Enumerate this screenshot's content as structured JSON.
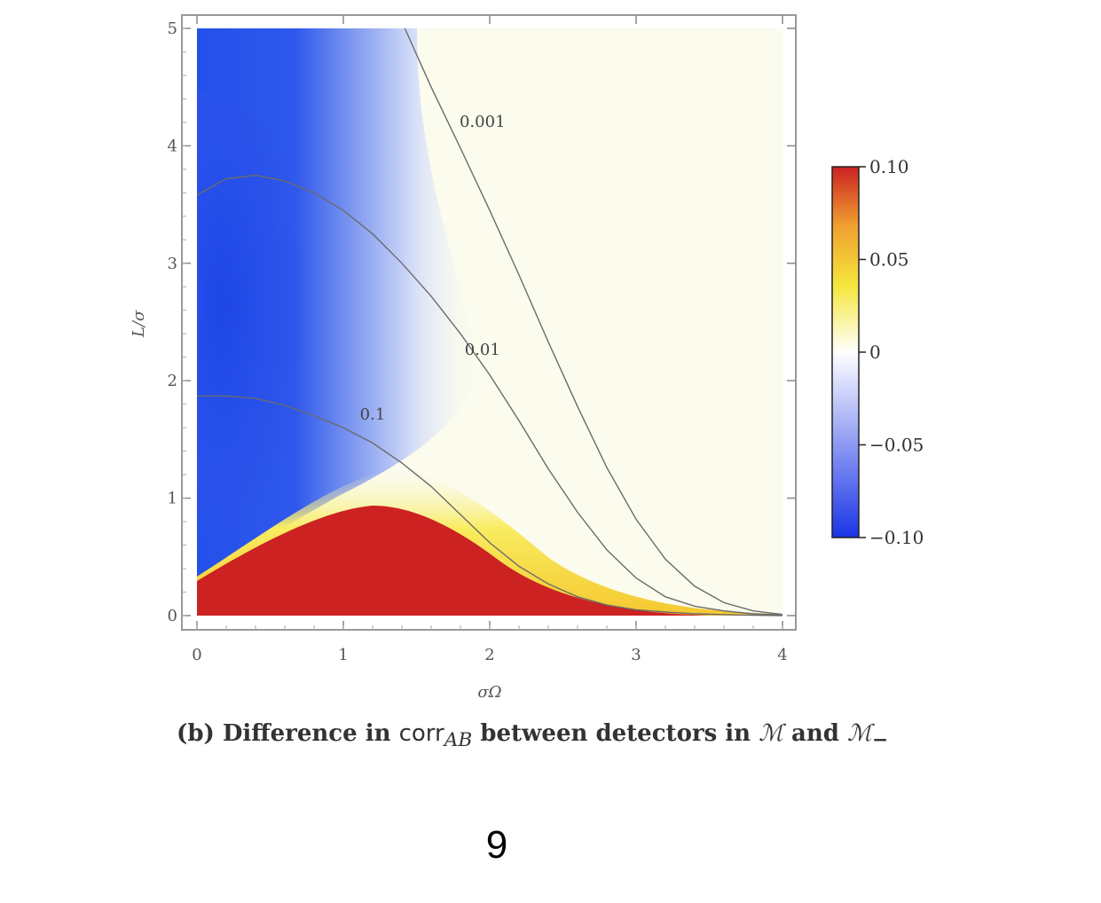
{
  "chart_data": {
    "type": "heatmap",
    "xlabel": "σΩ",
    "ylabel": "L/σ",
    "xlim": [
      0,
      4
    ],
    "ylim": [
      0,
      5
    ],
    "x_ticks": [
      "0",
      "1",
      "2",
      "3",
      "4"
    ],
    "y_ticks": [
      "0",
      "1",
      "2",
      "3",
      "4",
      "5"
    ],
    "colorbar": {
      "min": -0.1,
      "max": 0.1,
      "ticks": [
        "0.10",
        "0.05",
        "0",
        "−0.05",
        "−0.10"
      ],
      "colors": [
        "#1a34e6",
        "#ffffff",
        "#f5e63c",
        "#f0a030",
        "#cc2222"
      ]
    },
    "contours": [
      {
        "label": "0.1",
        "points": [
          [
            0,
            1.87
          ],
          [
            0.2,
            1.87
          ],
          [
            0.4,
            1.85
          ],
          [
            0.6,
            1.79
          ],
          [
            0.8,
            1.7
          ],
          [
            1.0,
            1.6
          ],
          [
            1.2,
            1.47
          ],
          [
            1.4,
            1.3
          ],
          [
            1.6,
            1.1
          ],
          [
            1.8,
            0.86
          ],
          [
            2.0,
            0.62
          ],
          [
            2.2,
            0.42
          ],
          [
            2.4,
            0.27
          ],
          [
            2.6,
            0.16
          ],
          [
            2.8,
            0.09
          ],
          [
            3.0,
            0.05
          ],
          [
            3.2,
            0.03
          ],
          [
            3.4,
            0.015
          ],
          [
            3.7,
            0.005
          ],
          [
            4.0,
            0.0
          ]
        ]
      },
      {
        "label": "0.01",
        "points": [
          [
            0,
            3.58
          ],
          [
            0.2,
            3.72
          ],
          [
            0.4,
            3.75
          ],
          [
            0.6,
            3.7
          ],
          [
            0.8,
            3.6
          ],
          [
            1.0,
            3.45
          ],
          [
            1.2,
            3.25
          ],
          [
            1.4,
            3.0
          ],
          [
            1.6,
            2.72
          ],
          [
            1.8,
            2.4
          ],
          [
            2.0,
            2.05
          ],
          [
            2.2,
            1.66
          ],
          [
            2.4,
            1.25
          ],
          [
            2.6,
            0.88
          ],
          [
            2.8,
            0.56
          ],
          [
            3.0,
            0.32
          ],
          [
            3.2,
            0.16
          ],
          [
            3.4,
            0.08
          ],
          [
            3.6,
            0.04
          ],
          [
            3.8,
            0.015
          ],
          [
            4.0,
            0.005
          ]
        ]
      },
      {
        "label": "0.001",
        "points": [
          [
            1.42,
            5.0
          ],
          [
            1.6,
            4.5
          ],
          [
            1.8,
            3.98
          ],
          [
            2.0,
            3.45
          ],
          [
            2.2,
            2.9
          ],
          [
            2.4,
            2.33
          ],
          [
            2.6,
            1.78
          ],
          [
            2.8,
            1.26
          ],
          [
            3.0,
            0.82
          ],
          [
            3.2,
            0.48
          ],
          [
            3.4,
            0.25
          ],
          [
            3.6,
            0.11
          ],
          [
            3.8,
            0.04
          ],
          [
            4.0,
            0.01
          ]
        ]
      }
    ]
  },
  "caption": {
    "prefix": "(b) Difference in ",
    "corr": "corr",
    "sub": "AB",
    "middle": " between detectors in ",
    "m1": "ℳ",
    "and": " and ",
    "m2": "ℳ",
    "m2_sub": "−"
  },
  "page_number": "9"
}
